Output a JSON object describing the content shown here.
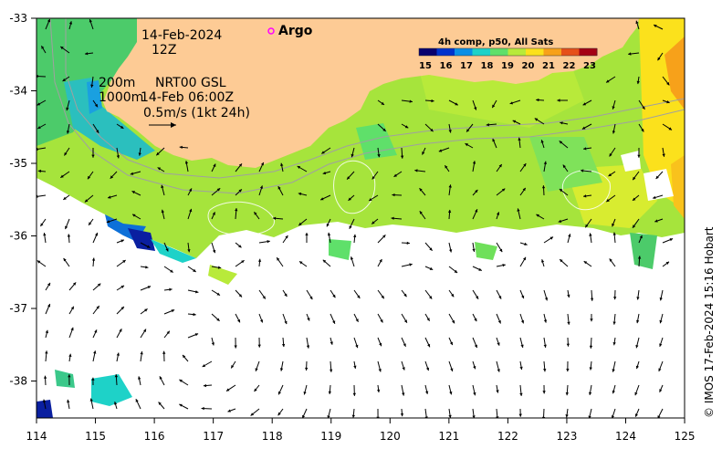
{
  "map": {
    "date_line1": "14-Feb-2024",
    "date_line2": "12Z",
    "argo_label": "Argo",
    "depth_200": "200m",
    "depth_1000": "1000m",
    "current_line1": "NRT00 GSL",
    "current_line2": "14-Feb 06:00Z",
    "scale_label": "0.5m/s (1kt 24h)",
    "colorbar_title": "4h comp, p50, All Sats",
    "colorbar_ticks": [
      "15",
      "16",
      "17",
      "18",
      "19",
      "20",
      "21",
      "22",
      "23"
    ],
    "colorbar_colors": [
      "#08006e",
      "#0033cc",
      "#0a8fe6",
      "#1ed2c8",
      "#5fe06a",
      "#b8ea3a",
      "#fbe11c",
      "#f7a11a",
      "#e6501a",
      "#a40014"
    ],
    "lon_ticks": [
      "114",
      "115",
      "116",
      "117",
      "118",
      "119",
      "120",
      "121",
      "122",
      "123",
      "124",
      "125"
    ],
    "lat_ticks": [
      "-33",
      "-34",
      "-35",
      "-36",
      "-37",
      "-38"
    ],
    "credit": "© IMOS 17-Feb-2024 15:16 Hobart",
    "land_color": "#fdcb95",
    "argo_color": "#ff00ff"
  }
}
